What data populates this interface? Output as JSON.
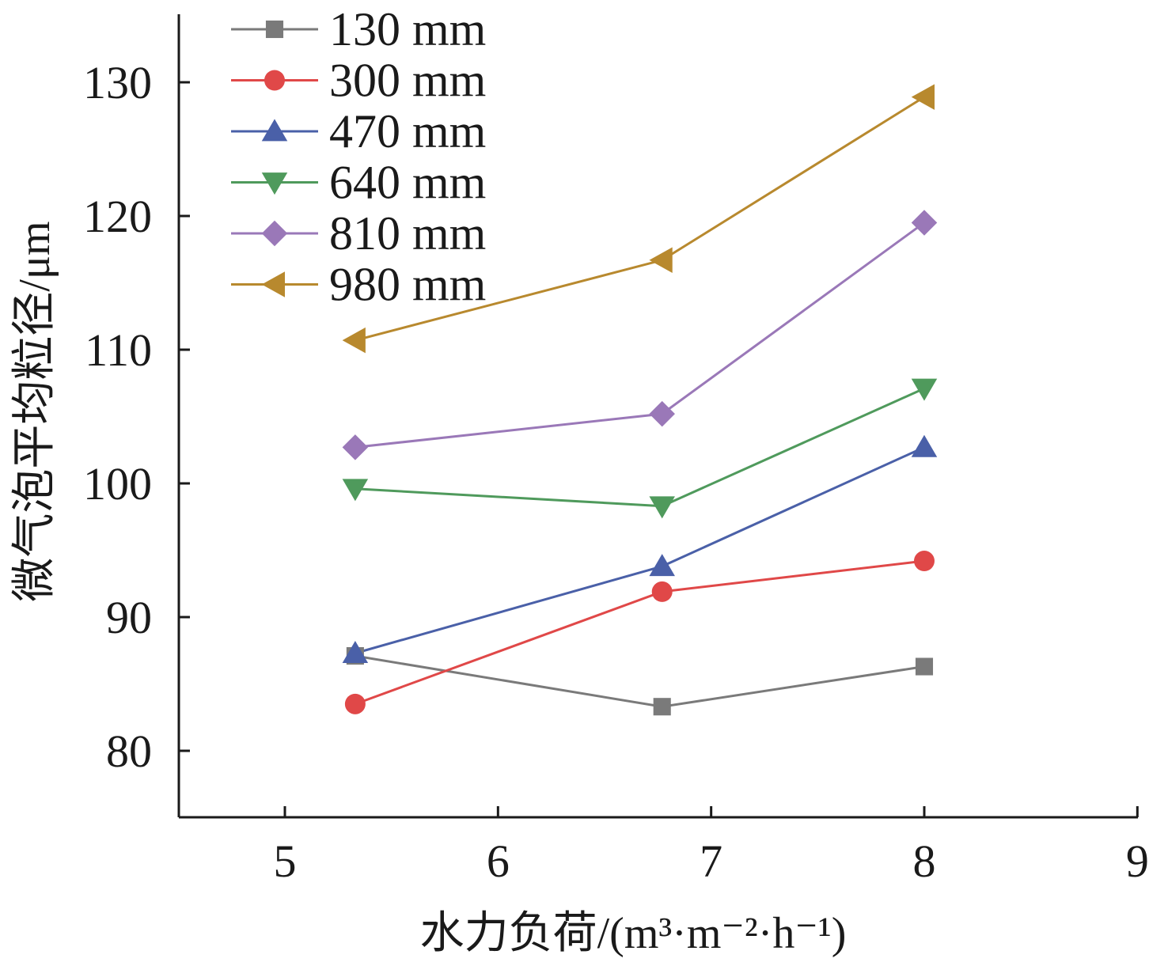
{
  "chart_data": {
    "type": "line",
    "x": [
      5.33,
      6.77,
      8.0
    ],
    "xlabel": "水力负荷/(m³·m⁻²·h⁻¹)",
    "ylabel": "微气泡平均粒径/μm",
    "xlim": [
      4.5,
      9
    ],
    "ylim": [
      75,
      135
    ],
    "xticks": [
      "5",
      "6",
      "7",
      "8",
      "9"
    ],
    "yticks": [
      "80",
      "90",
      "100",
      "110",
      "120",
      "130"
    ],
    "grid": false,
    "legend_position": "top-left",
    "series": [
      {
        "name": "130 mm",
        "values": [
          87.1,
          83.3,
          86.3
        ],
        "color": "#7a7a7a",
        "marker": "square"
      },
      {
        "name": "300 mm",
        "values": [
          83.5,
          91.9,
          94.2
        ],
        "color": "#e04848",
        "marker": "circle"
      },
      {
        "name": "470 mm",
        "values": [
          87.3,
          93.8,
          102.7
        ],
        "color": "#4a60a8",
        "marker": "triangle-up"
      },
      {
        "name": "640 mm",
        "values": [
          99.6,
          98.3,
          107.1
        ],
        "color": "#4f9a5c",
        "marker": "triangle-down"
      },
      {
        "name": "810 mm",
        "values": [
          102.7,
          105.2,
          119.5
        ],
        "color": "#9a78b8",
        "marker": "diamond"
      },
      {
        "name": "980 mm",
        "values": [
          110.7,
          116.7,
          128.9
        ],
        "color": "#b8892e",
        "marker": "triangle-left"
      }
    ]
  }
}
